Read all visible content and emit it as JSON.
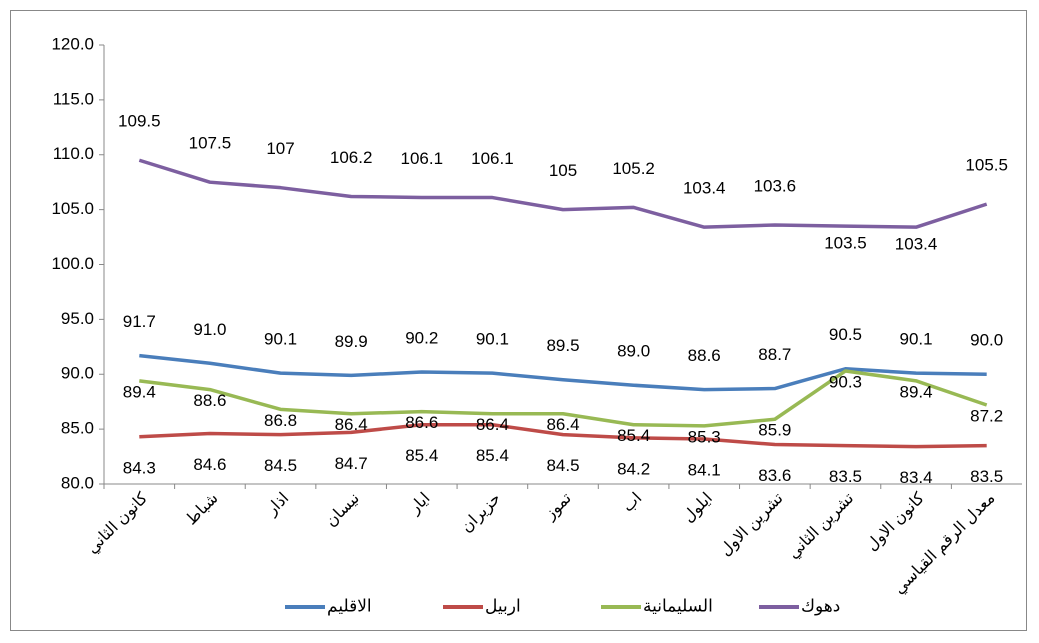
{
  "chart_data": {
    "type": "line",
    "categories": [
      "كانون الثاني",
      "شباط",
      "اذار",
      "نيسان",
      "ايار",
      "حزيران",
      "تموز",
      "اب",
      "ايلول",
      "تشرين الاول",
      "تشرين الثاني",
      "كانون الاول",
      "معدل الرقم القياسي"
    ],
    "series": [
      {
        "name": "الاقليم",
        "color": "#4a7ebb",
        "values": [
          91.7,
          91.0,
          90.1,
          89.9,
          90.2,
          90.1,
          89.5,
          89.0,
          88.6,
          88.7,
          90.5,
          90.1,
          90.0
        ],
        "value_labels": [
          "91.7",
          "91.0",
          "90.1",
          "89.9",
          "90.2",
          "90.1",
          "89.5",
          "89.0",
          "88.6",
          "88.7",
          "90.5",
          "90.1",
          "90.0"
        ]
      },
      {
        "name": "اربيل",
        "color": "#be4b48",
        "values": [
          84.3,
          84.6,
          84.5,
          84.7,
          85.4,
          85.4,
          84.5,
          84.2,
          84.1,
          83.6,
          83.5,
          83.4,
          83.5
        ]
      },
      {
        "name": "السليمانية",
        "color": "#98b954",
        "values": [
          89.4,
          88.6,
          86.8,
          86.4,
          86.6,
          86.4,
          86.4,
          85.4,
          85.3,
          85.9,
          90.3,
          89.4,
          87.2
        ]
      },
      {
        "name": "دهوك",
        "color": "#7d5fa0",
        "values": [
          109.5,
          107.5,
          107,
          106.2,
          106.1,
          106.1,
          105,
          105.2,
          103.4,
          103.6,
          103.5,
          103.4,
          105.5
        ]
      }
    ],
    "ylim": [
      80,
      120
    ],
    "yticks": [
      {
        "value": 80,
        "label": "80.0"
      },
      {
        "value": 85,
        "label": "85.0"
      },
      {
        "value": 90,
        "label": "90.0"
      },
      {
        "value": 95,
        "label": "95.0"
      },
      {
        "value": 100,
        "label": "100.0"
      },
      {
        "value": 105,
        "label": "105.0"
      },
      {
        "value": 110,
        "label": "110.0"
      },
      {
        "value": 115,
        "label": "115.0"
      },
      {
        "value": 120,
        "label": "120.0"
      }
    ],
    "legend": "bottom"
  }
}
